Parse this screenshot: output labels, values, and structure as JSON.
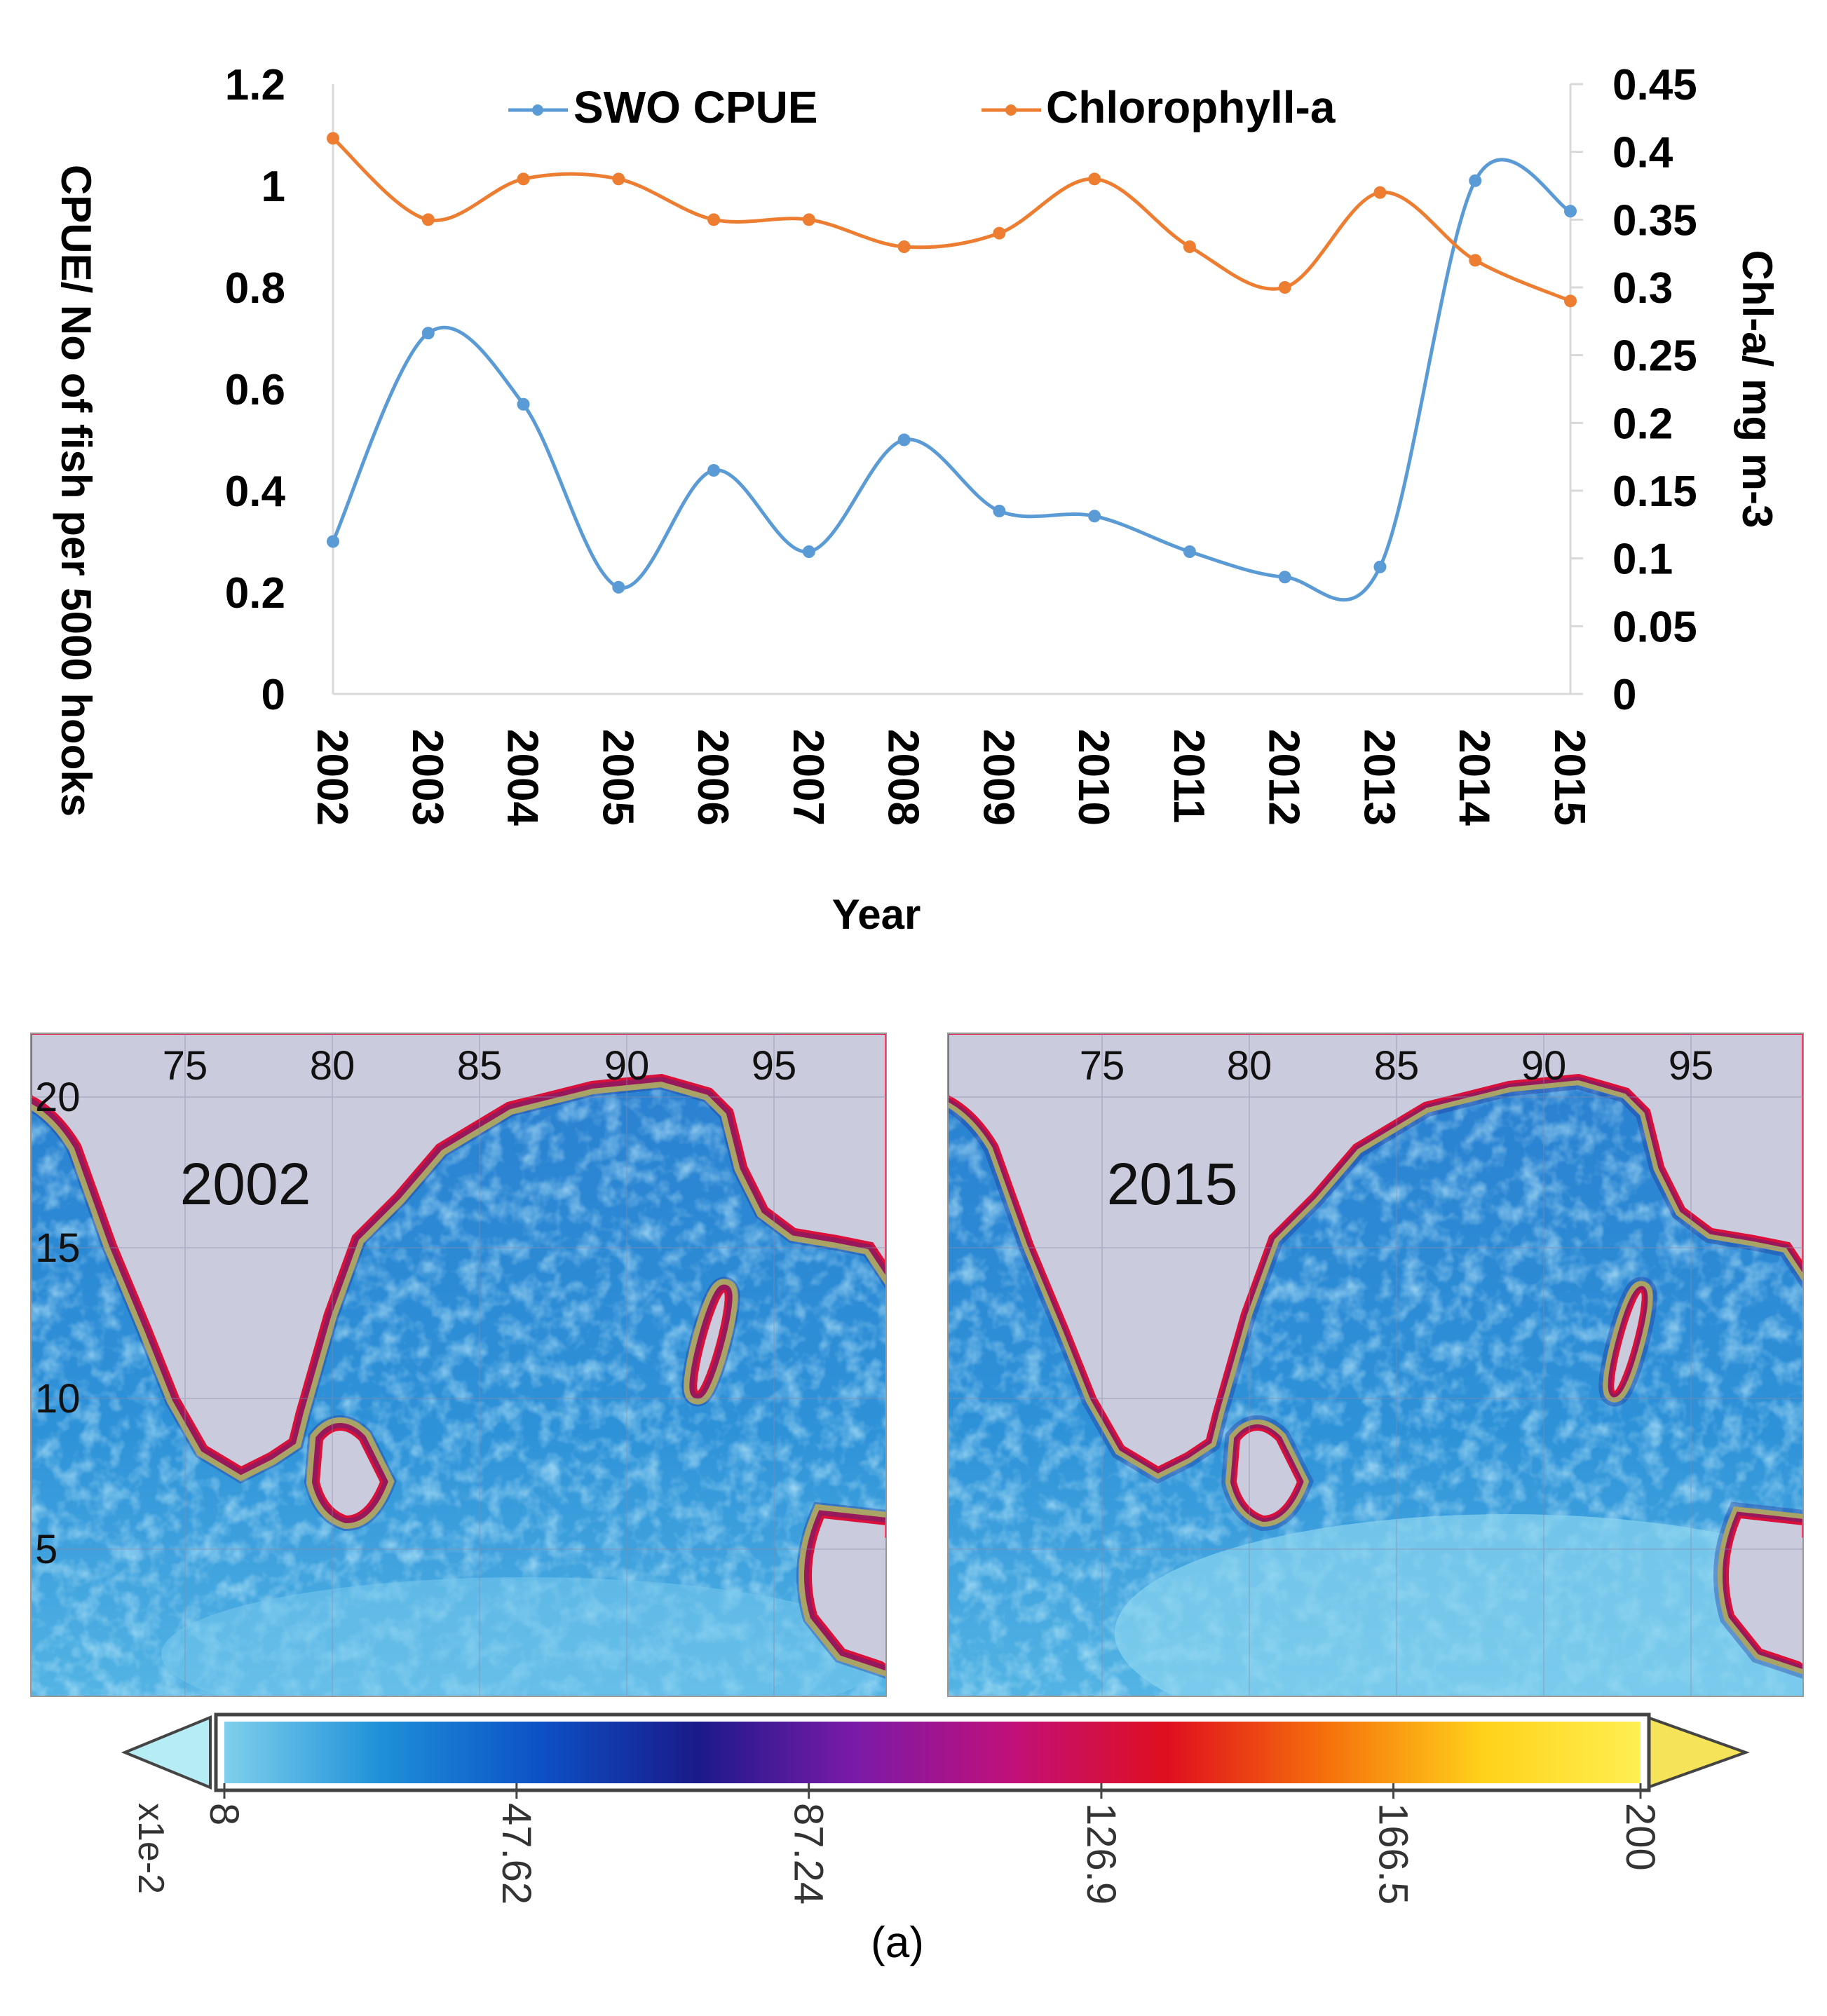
{
  "chart_data": [
    {
      "type": "line",
      "title": "",
      "xlabel": "Year",
      "ylabel": "CPUE/ No of fish per 5000 hooks",
      "y2label": "Chl-a/ mg m-3",
      "categories": [
        "2002",
        "2003",
        "2004",
        "2005",
        "2006",
        "2007",
        "2008",
        "2009",
        "2010",
        "2011",
        "2012",
        "2013",
        "2014",
        "2015"
      ],
      "ylim": [
        0,
        1.2
      ],
      "y2lim": [
        0,
        0.45
      ],
      "yticks": [
        "0",
        "0.2",
        "0.4",
        "0.6",
        "0.8",
        "1",
        "1.2"
      ],
      "y2ticks": [
        "0",
        "0.05",
        "0.1",
        "0.15",
        "0.2",
        "0.25",
        "0.3",
        "0.35",
        "0.4",
        "0.45"
      ],
      "legend_position": "top",
      "series": [
        {
          "name": "SWO CPUE",
          "axis": "left",
          "color": "#5b9bd5",
          "values": [
            0.3,
            0.71,
            0.57,
            0.21,
            0.44,
            0.28,
            0.5,
            0.36,
            0.35,
            0.28,
            0.23,
            0.25,
            1.01,
            0.95
          ]
        },
        {
          "name": "Chlorophyll-a",
          "axis": "right",
          "color": "#ed7d31",
          "values": [
            0.41,
            0.35,
            0.38,
            0.38,
            0.35,
            0.35,
            0.33,
            0.34,
            0.38,
            0.33,
            0.3,
            0.37,
            0.32,
            0.29
          ]
        }
      ]
    },
    {
      "type": "heatmap",
      "maps": [
        {
          "label": "2002",
          "lon_ticks": [
            "75",
            "80",
            "85",
            "90",
            "95"
          ],
          "lat_ticks": [
            "20",
            "15",
            "10",
            "5"
          ]
        },
        {
          "label": "2015",
          "lon_ticks": [
            "75",
            "80",
            "85",
            "90",
            "95"
          ],
          "lat_ticks": []
        }
      ],
      "colorbar": {
        "ticks": [
          "8",
          "47.62",
          "87.24",
          "126.9",
          "166.5",
          "200"
        ],
        "unit": "x1e-2",
        "colors": [
          "#7fd0ec",
          "#1e90d8",
          "#0c52c6",
          "#1a1a8a",
          "#7a1aa8",
          "#c0107a",
          "#e00f1e",
          "#f5700c",
          "#ffd21a",
          "#ffef52"
        ],
        "low_color": "#b6ecf4",
        "high_color": "#f5e35a"
      }
    }
  ],
  "caption": "(a)",
  "colors": {
    "ocean_base": "#2f8fd6",
    "land": "#cbcbde",
    "coast_high": "#f7e64a",
    "coast_mid": "#d8103a"
  }
}
